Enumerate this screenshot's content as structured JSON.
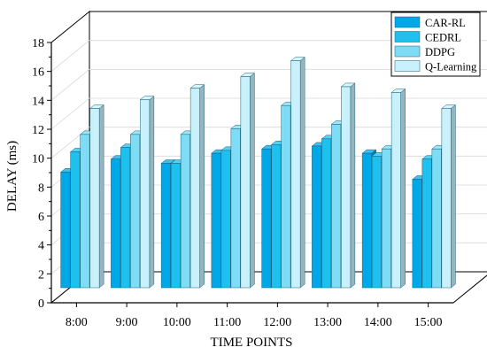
{
  "chart_data": {
    "type": "bar",
    "style": "3d-clustered",
    "categories": [
      "8:00",
      "9:00",
      "10:00",
      "11:00",
      "12:00",
      "13:00",
      "14:00",
      "15:00"
    ],
    "series": [
      {
        "name": "CAR-RL",
        "color": "#00a8e8",
        "values": [
          8.0,
          8.9,
          8.6,
          9.3,
          9.6,
          9.8,
          9.3,
          7.5
        ]
      },
      {
        "name": "CEDRL",
        "color": "#1ec0ee",
        "values": [
          9.4,
          9.7,
          8.6,
          9.5,
          9.9,
          10.3,
          9.1,
          8.9
        ]
      },
      {
        "name": "DDPG",
        "color": "#7fdcf5",
        "values": [
          10.6,
          10.6,
          10.6,
          11.0,
          12.6,
          11.3,
          9.6,
          9.6
        ]
      },
      {
        "name": "Q-Learning",
        "color": "#c9f1fb",
        "values": [
          12.4,
          13.0,
          13.8,
          14.6,
          15.7,
          13.9,
          13.5,
          12.4
        ]
      }
    ],
    "xlabel": "TIME POINTS",
    "ylabel": "DELAY (ms)",
    "ylim": [
      0,
      18
    ],
    "yticks": [
      "0",
      "2",
      "4",
      "6",
      "8",
      "10",
      "12",
      "14",
      "16",
      "18"
    ],
    "grid": true,
    "legend_position": "top-right"
  }
}
